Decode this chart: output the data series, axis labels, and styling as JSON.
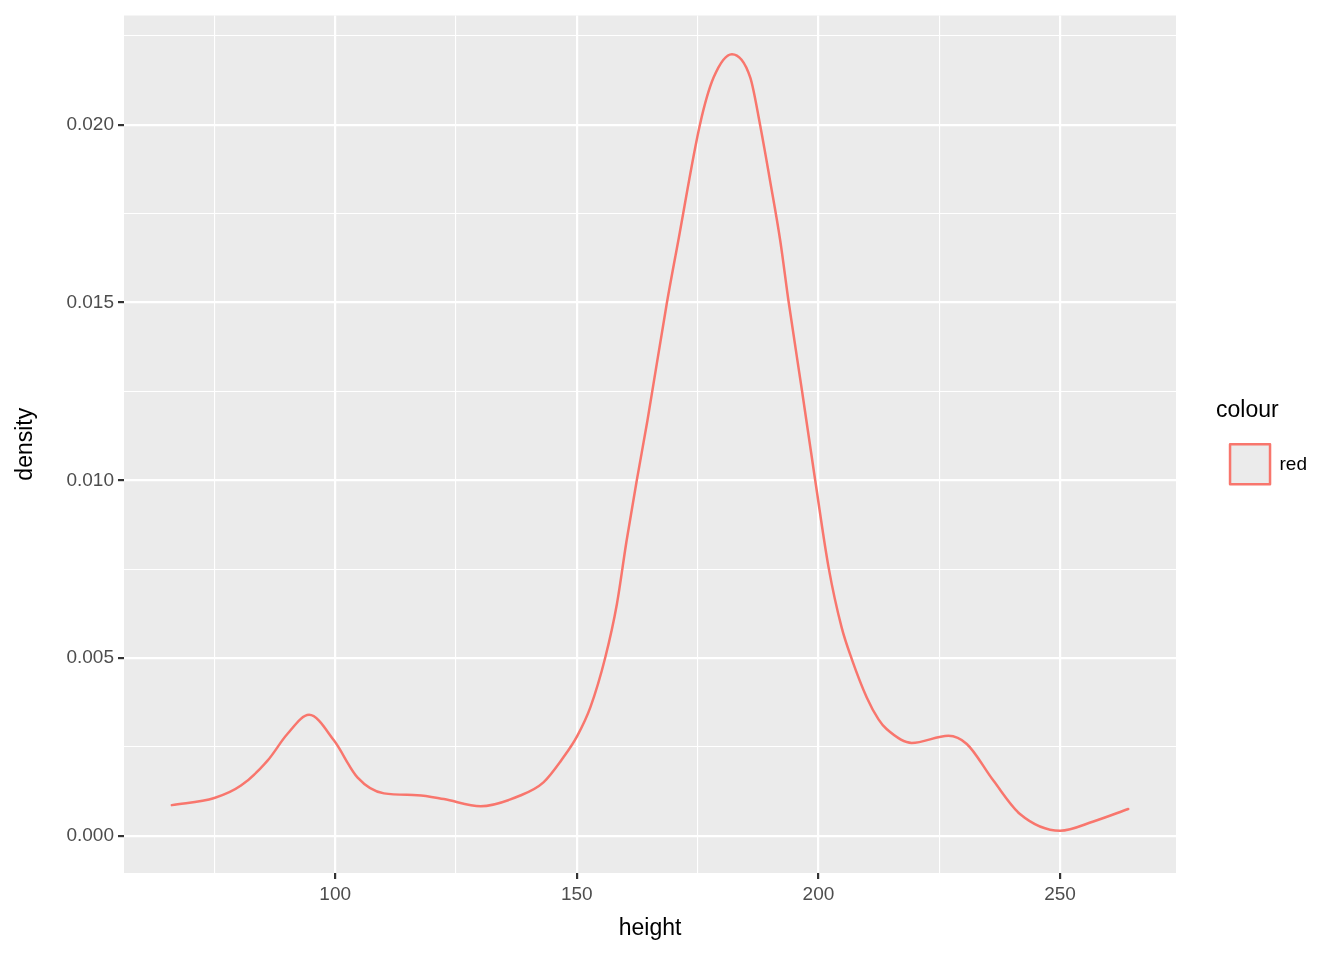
{
  "chart_data": {
    "type": "line",
    "xlabel": "height",
    "ylabel": "density",
    "legend_title": "colour",
    "x": [
      66.2,
      75.0,
      80.5,
      86.0,
      90.1,
      94.6,
      99.8,
      104.6,
      110.1,
      117.0,
      122.5,
      130.1,
      138.3,
      143.1,
      147.2,
      150.1,
      152.8,
      155.9,
      158.3,
      160.3,
      162.4,
      164.6,
      168.6,
      171.0,
      175.5,
      178.3,
      182.1,
      185.9,
      187.9,
      190.0,
      192.1,
      193.8,
      196.6,
      199.3,
      202.1,
      204.8,
      206.9,
      210.0,
      212.4,
      214.1,
      219.3,
      226.9,
      230.7,
      236.2,
      241.7,
      250.0,
      256.9,
      264.1
    ],
    "series": [
      {
        "name": "red",
        "color": "#f8766d",
        "values": [
          0.00086,
          0.00106,
          0.00141,
          0.00211,
          0.00286,
          0.0034,
          0.00267,
          0.00164,
          0.00119,
          0.00114,
          0.00103,
          0.00083,
          0.00113,
          0.0015,
          0.0022,
          0.00281,
          0.00361,
          0.00502,
          0.00652,
          0.0083,
          0.00999,
          0.01167,
          0.01496,
          0.01674,
          0.02002,
          0.02133,
          0.02199,
          0.02133,
          0.02002,
          0.01842,
          0.01674,
          0.01505,
          0.01252,
          0.01003,
          0.00755,
          0.00586,
          0.00497,
          0.00389,
          0.00328,
          0.003,
          0.00261,
          0.00281,
          0.00258,
          0.00155,
          0.00061,
          0.00014,
          0.0004,
          0.00075
        ]
      }
    ],
    "xlim": [
      56.3,
      274.0
    ],
    "xticks": [
      {
        "value": 75,
        "label": null
      },
      100,
      {
        "value": 125,
        "label": null
      },
      150,
      {
        "value": 175,
        "label": null
      },
      200,
      {
        "value": 225,
        "label": null
      },
      250
    ],
    "ylim": [
      -0.00105,
      0.02308
    ],
    "yticks": [
      {
        "value": 0,
        "label": "0.000"
      },
      {
        "value": 0.0025,
        "label": null
      },
      0.005,
      {
        "value": 0.0075,
        "label": null
      },
      {
        "value": 0.01,
        "label": "0.010"
      },
      {
        "value": 0.0125,
        "label": null
      },
      0.015,
      {
        "value": 0.0175,
        "label": null
      },
      {
        "value": 0.02,
        "label": "0.020"
      },
      {
        "value": 0.0225,
        "label": null
      }
    ],
    "grid": true,
    "legend": "right"
  }
}
